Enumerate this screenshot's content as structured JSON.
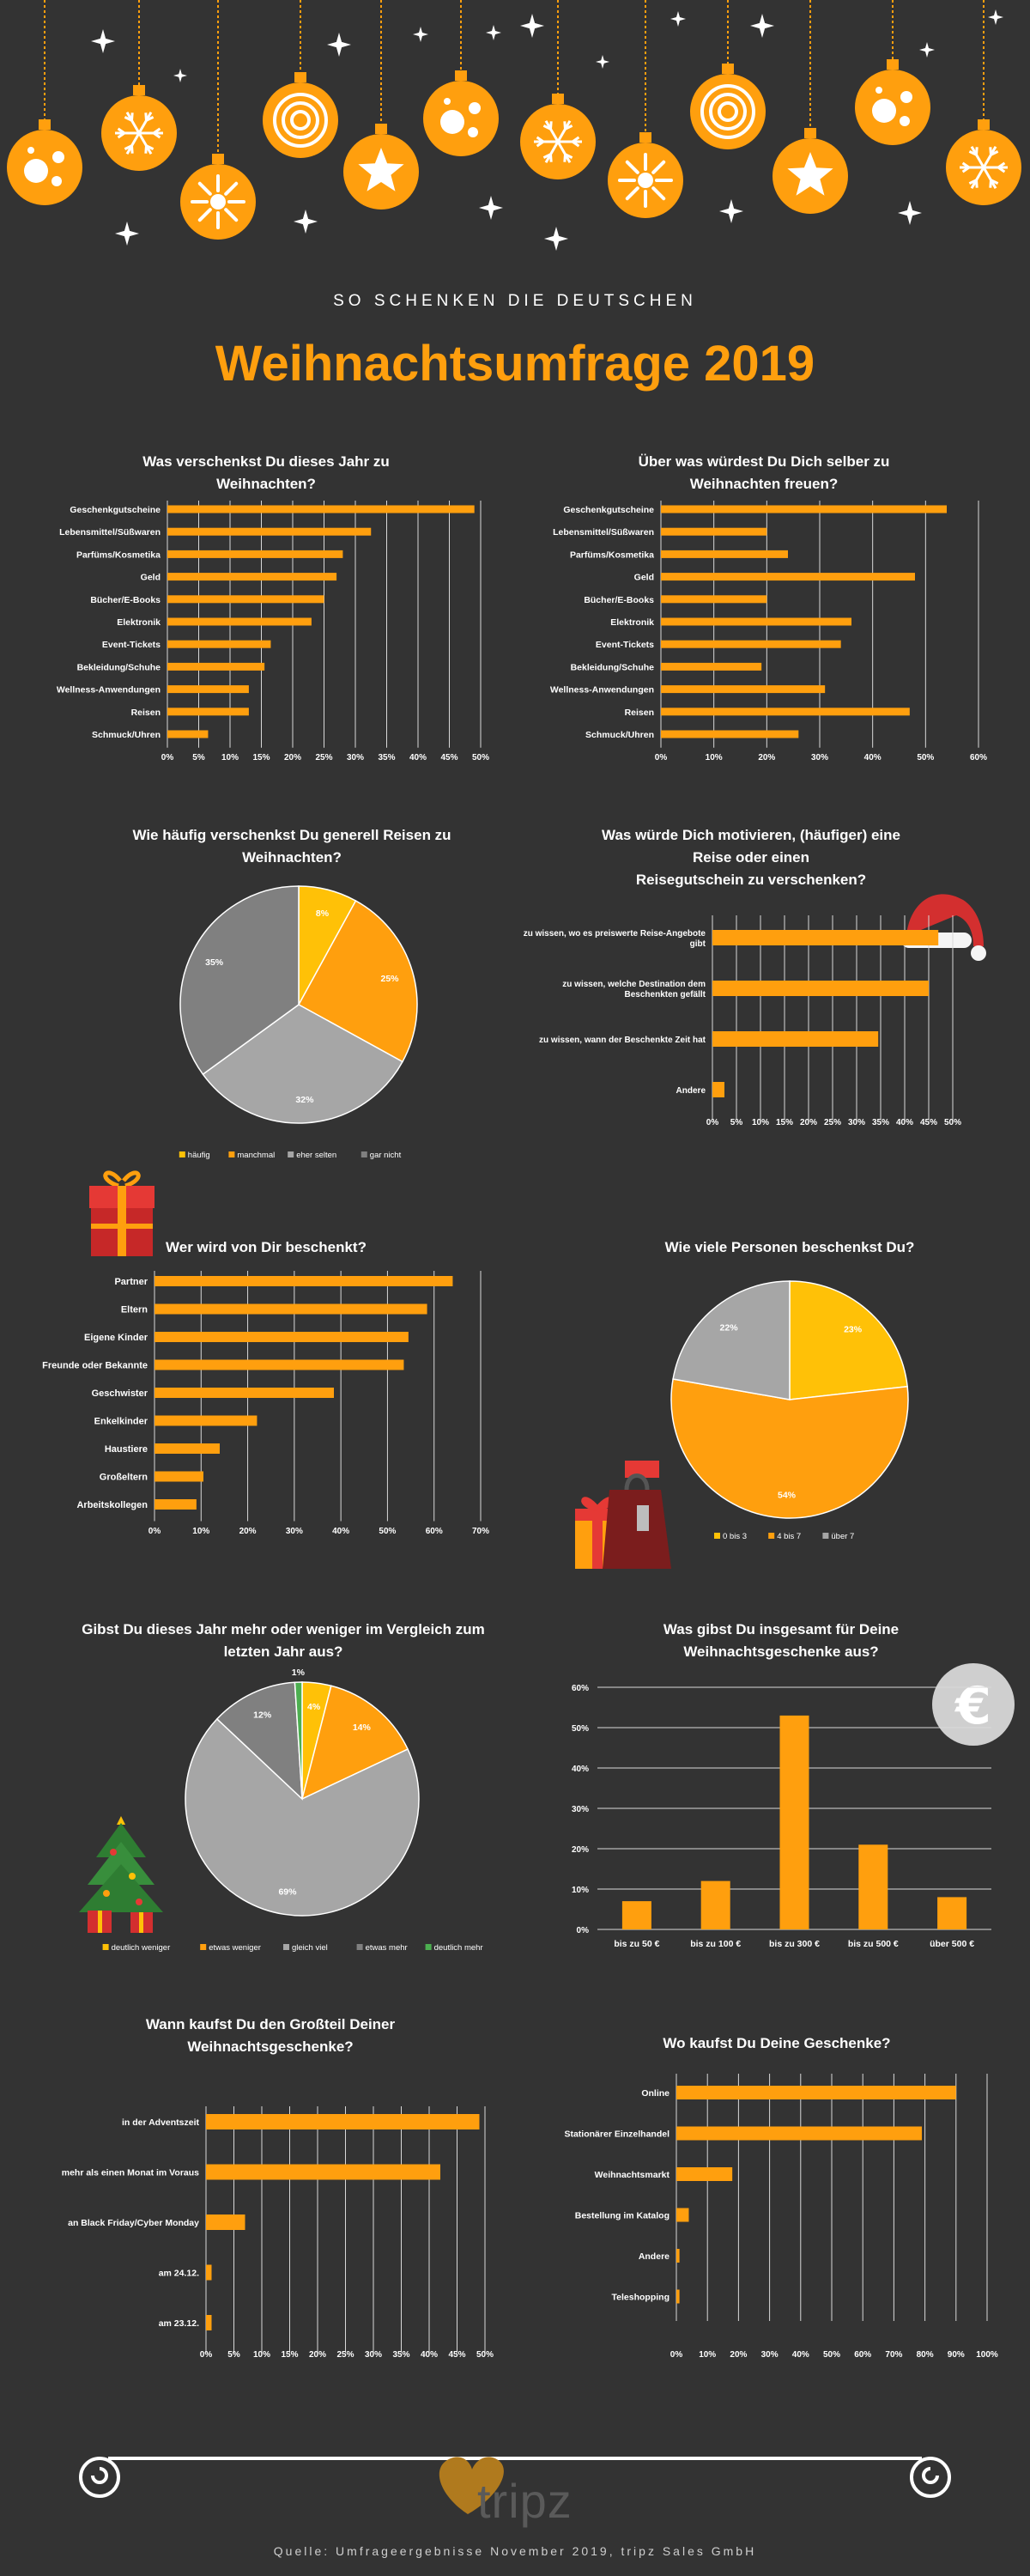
{
  "header": {
    "kicker": "SO SCHENKEN DIE DEUTSCHEN",
    "title": "Weihnachtsumfrage 2019"
  },
  "footer": {
    "logo": "tripz",
    "source": "Quelle: Umfrageergebnisse November 2019, tripz Sales GmbH"
  },
  "colors": {
    "background": "#333333",
    "orange": "#ff9f0e",
    "yellow": "#ffc107",
    "grey": "#a6a6a6",
    "dark_grey": "#808080",
    "green": "#4caf50"
  },
  "chart_data": [
    {
      "id": "c1",
      "type": "bar",
      "orientation": "horizontal",
      "title": [
        "Was verschenkst Du dieses Jahr zu",
        "Weihnachten?"
      ],
      "categories": [
        "Geschenkgutscheine",
        "Lebensmittel/Süßwaren",
        "Parfüms/Kosmetika",
        "Geld",
        "Bücher/E-Books",
        "Elektronik",
        "Event-Tickets",
        "Bekleidung/Schuhe",
        "Wellness-Anwendungen",
        "Reisen",
        "Schmuck/Uhren"
      ],
      "values": [
        49,
        32.5,
        28,
        27,
        25,
        23,
        16.5,
        15.5,
        13,
        13,
        6.5
      ],
      "ticks": [
        "0%",
        "5%",
        "10%",
        "15%",
        "20%",
        "25%",
        "30%",
        "35%",
        "40%",
        "45%",
        "50%"
      ],
      "xlim": [
        0,
        50
      ]
    },
    {
      "id": "c2",
      "type": "bar",
      "orientation": "horizontal",
      "title": [
        "Über was würdest Du Dich selber zu",
        "Weihnachten freuen?"
      ],
      "categories": [
        "Geschenkgutscheine",
        "Lebensmittel/Süßwaren",
        "Parfüms/Kosmetika",
        "Geld",
        "Bücher/E-Books",
        "Elektronik",
        "Event-Tickets",
        "Bekleidung/Schuhe",
        "Wellness-Anwendungen",
        "Reisen",
        "Schmuck/Uhren"
      ],
      "values": [
        54,
        20,
        24,
        48,
        20,
        36,
        34,
        19,
        31,
        47,
        26
      ],
      "ticks": [
        "0%",
        "10%",
        "20%",
        "30%",
        "40%",
        "50%",
        "60%"
      ],
      "xlim": [
        0,
        60
      ]
    },
    {
      "id": "c3",
      "type": "pie",
      "title": [
        "Wie häufig verschenkst Du generell Reisen zu",
        "Weihnachten?"
      ],
      "labels": [
        "häufig",
        "manchmal",
        "eher selten",
        "gar nicht"
      ],
      "values": [
        8,
        25,
        32,
        35
      ],
      "value_labels": [
        "8%",
        "25%",
        "32%",
        "35%"
      ],
      "colors": [
        "#ffc107",
        "#ff9f0e",
        "#a6a6a6",
        "#808080"
      ]
    },
    {
      "id": "c4",
      "type": "bar",
      "orientation": "horizontal",
      "title": [
        "Was würde Dich motivieren, (häufiger) eine",
        "Reise oder einen",
        "Reisegutschein zu verschenken?"
      ],
      "categories": [
        "zu wissen, wo es preiswerte Reise-Angebote gibt",
        "zu wissen, welche Destination dem Beschenkten gefällt",
        "zu wissen, wann der Beschenkte Zeit hat",
        "Andere"
      ],
      "values": [
        47,
        45,
        34.5,
        2.5
      ],
      "ticks": [
        "0%",
        "5%",
        "10%",
        "15%",
        "20%",
        "25%",
        "30%",
        "35%",
        "40%",
        "45%",
        "50%"
      ],
      "xlim": [
        0,
        50
      ]
    },
    {
      "id": "c5",
      "type": "bar",
      "orientation": "horizontal",
      "title": [
        "Wer wird von Dir beschenkt?"
      ],
      "categories": [
        "Partner",
        "Eltern",
        "Eigene Kinder",
        "Freunde oder Bekannte",
        "Geschwister",
        "Enkelkinder",
        "Haustiere",
        "Großeltern",
        "Arbeitskollegen"
      ],
      "values": [
        64,
        58.5,
        54.5,
        53.5,
        38.5,
        22,
        14,
        10.5,
        9
      ],
      "ticks": [
        "0%",
        "10%",
        "20%",
        "30%",
        "40%",
        "50%",
        "60%",
        "70%"
      ],
      "xlim": [
        0,
        70
      ]
    },
    {
      "id": "c6",
      "type": "pie",
      "title": [
        "Wie viele Personen beschenkst Du?"
      ],
      "labels": [
        "0 bis 3",
        "4 bis 7",
        "über 7"
      ],
      "values": [
        23,
        54,
        22
      ],
      "value_labels": [
        "23%",
        "54%",
        "22%"
      ],
      "colors": [
        "#ffc107",
        "#ff9f0e",
        "#a6a6a6"
      ]
    },
    {
      "id": "c7",
      "type": "pie",
      "title": [
        "Gibst Du dieses Jahr mehr oder weniger im Vergleich zum",
        "letzten Jahr aus?"
      ],
      "labels": [
        "deutlich weniger",
        "etwas weniger",
        "gleich viel",
        "etwas mehr",
        "deutlich mehr"
      ],
      "values": [
        4,
        14,
        69,
        12,
        1
      ],
      "value_labels": [
        "4%",
        "14%",
        "69%",
        "12%",
        "1%"
      ],
      "colors": [
        "#ffc107",
        "#ff9f0e",
        "#a6a6a6",
        "#808080",
        "#4caf50"
      ]
    },
    {
      "id": "c8",
      "type": "bar",
      "orientation": "vertical",
      "title": [
        "Was gibst Du insgesamt für Deine",
        "Weihnachtsgeschenke aus?"
      ],
      "categories": [
        "bis zu 50 €",
        "bis zu 100 €",
        "bis zu 300 €",
        "bis zu 500 €",
        "über 500 €"
      ],
      "values": [
        7,
        12,
        53,
        21,
        8
      ],
      "ticks": [
        "0%",
        "10%",
        "20%",
        "30%",
        "40%",
        "50%",
        "60%"
      ],
      "ylim": [
        0,
        60
      ]
    },
    {
      "id": "c9",
      "type": "bar",
      "orientation": "horizontal",
      "title": [
        "Wann kaufst Du den Großteil Deiner",
        "Weihnachtsgeschenke?"
      ],
      "categories": [
        "in der Adventszeit",
        "mehr als einen Monat im Voraus",
        "an Black Friday/Cyber Monday",
        "am 24.12.",
        "am 23.12."
      ],
      "values": [
        49,
        42,
        7,
        1,
        1
      ],
      "ticks": [
        "0%",
        "5%",
        "10%",
        "15%",
        "20%",
        "25%",
        "30%",
        "35%",
        "40%",
        "45%",
        "50%"
      ],
      "xlim": [
        0,
        50
      ]
    },
    {
      "id": "c10",
      "type": "bar",
      "orientation": "horizontal",
      "title": [
        "Wo kaufst Du Deine Geschenke?"
      ],
      "categories": [
        "Online",
        "Stationärer Einzelhandel",
        "Weihnachtsmarkt",
        "Bestellung im Katalog",
        "Andere",
        "Teleshopping"
      ],
      "values": [
        90,
        79,
        18,
        4,
        1,
        1
      ],
      "ticks": [
        "0%",
        "10%",
        "20%",
        "30%",
        "40%",
        "50%",
        "60%",
        "70%",
        "80%",
        "90%",
        "100%"
      ],
      "xlim": [
        0,
        100
      ]
    }
  ]
}
